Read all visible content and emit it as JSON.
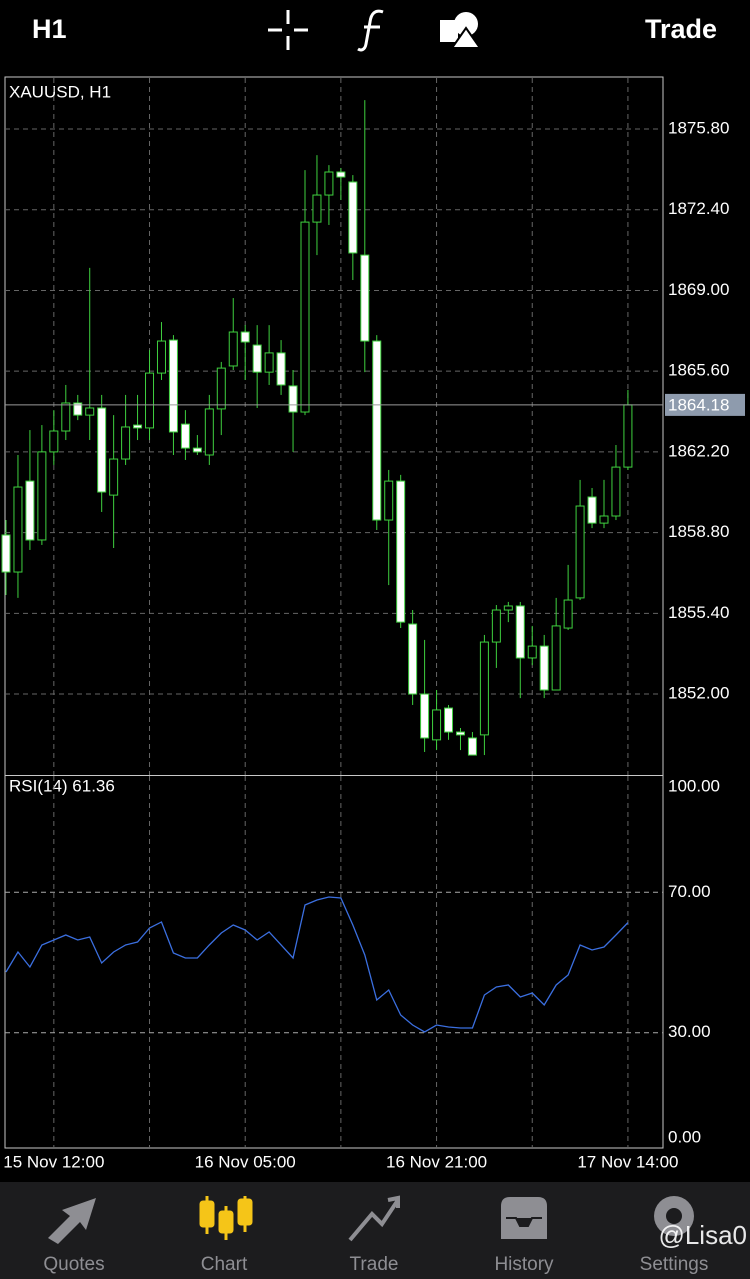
{
  "toolbar": {
    "timeframe": "H1",
    "action": "Trade"
  },
  "chart_data": [
    {
      "type": "candlestick",
      "title": "XAUUSD, H1",
      "grid": true,
      "up_color": "#3fd13f",
      "down_color": "#ffffff",
      "open": [
        1858.7,
        1857.14,
        1860.97,
        1858.49,
        1862.2,
        1863.08,
        1864.26,
        1863.75,
        1864.05,
        1860.38,
        1861.9,
        1863.33,
        1863.21,
        1865.52,
        1866.91,
        1863.37,
        1862.36,
        1862.07,
        1864.01,
        1865.82,
        1867.25,
        1866.7,
        1865.56,
        1866.37,
        1864.98,
        1863.88,
        1871.88,
        1873.02,
        1873.99,
        1873.57,
        1870.49,
        1866.87,
        1859.33,
        1860.97,
        1854.95,
        1852.0,
        1850.07,
        1851.41,
        1850.4,
        1850.15,
        1850.28,
        1854.19,
        1855.54,
        1855.71,
        1853.52,
        1854.02,
        1852.17,
        1854.78,
        1856.05,
        1860.3,
        1859.2,
        1859.5,
        1861.56
      ],
      "high": [
        1859.33,
        1862.07,
        1863.12,
        1863.33,
        1863.96,
        1865.02,
        1864.6,
        1869.95,
        1864.6,
        1863.75,
        1864.6,
        1864.6,
        1866.49,
        1867.67,
        1867.12,
        1863.96,
        1862.91,
        1864.6,
        1865.99,
        1868.68,
        1867.54,
        1867.54,
        1867.54,
        1866.91,
        1865.65,
        1874.07,
        1874.7,
        1874.28,
        1874.16,
        1873.86,
        1877.02,
        1867.12,
        1861.44,
        1861.23,
        1855.54,
        1854.28,
        1852.17,
        1851.54,
        1850.57,
        1850.4,
        1854.49,
        1855.75,
        1855.88,
        1855.88,
        1854.87,
        1854.49,
        1856.05,
        1857.44,
        1861.02,
        1860.68,
        1861.02,
        1862.49,
        1864.81
      ],
      "low": [
        1856.17,
        1856.05,
        1858.07,
        1858.28,
        1861.65,
        1862.7,
        1863.54,
        1862.7,
        1859.67,
        1858.15,
        1861.65,
        1862.7,
        1862.7,
        1865.23,
        1862.07,
        1861.86,
        1862.07,
        1861.65,
        1862.91,
        1865.65,
        1865.23,
        1864.05,
        1865.02,
        1864.6,
        1862.2,
        1863.75,
        1870.49,
        1871.76,
        1872.81,
        1869.44,
        1865.56,
        1858.91,
        1856.59,
        1854.78,
        1851.54,
        1849.56,
        1849.64,
        1850.07,
        1849.64,
        1849.43,
        1849.43,
        1853.1,
        1855.03,
        1851.83,
        1853.22,
        1851.83,
        1852.17,
        1854.7,
        1855.96,
        1858.99,
        1858.99,
        1859.33,
        1861.44
      ],
      "close": [
        1857.14,
        1860.72,
        1858.49,
        1862.2,
        1863.08,
        1864.26,
        1863.75,
        1864.05,
        1860.51,
        1861.9,
        1863.25,
        1863.21,
        1865.52,
        1866.87,
        1863.04,
        1862.36,
        1862.2,
        1864.01,
        1865.73,
        1867.25,
        1866.83,
        1865.56,
        1866.37,
        1865.02,
        1863.88,
        1871.88,
        1873.02,
        1873.99,
        1873.78,
        1870.58,
        1866.87,
        1859.33,
        1860.97,
        1855.03,
        1852.0,
        1850.15,
        1851.33,
        1850.4,
        1850.28,
        1849.43,
        1854.19,
        1855.54,
        1855.71,
        1853.52,
        1854.02,
        1852.17,
        1854.87,
        1855.96,
        1859.92,
        1859.2,
        1859.5,
        1861.56,
        1864.18
      ],
      "current_price": 1864.18,
      "ylim": [
        1848.59,
        1877.95
      ],
      "yticks": [
        {
          "value": 1875.8,
          "label": "1875.80"
        },
        {
          "value": 1872.4,
          "label": "1872.40"
        },
        {
          "value": 1869,
          "label": "1869.00"
        },
        {
          "value": 1865.6,
          "label": "1865.60"
        },
        {
          "value": 1862.2,
          "label": "1862.20"
        },
        {
          "value": 1858.8,
          "label": "1858.80"
        },
        {
          "value": 1855.4,
          "label": "1855.40"
        },
        {
          "value": 1852,
          "label": "1852.00"
        }
      ]
    },
    {
      "type": "line",
      "title": "RSI(14) 61.36",
      "color": "#3b6fe0",
      "grid": true,
      "categories": [
        null,
        null,
        null,
        null,
        "15 Nov 12:00",
        null,
        null,
        null,
        null,
        null,
        null,
        null,
        null,
        null,
        null,
        null,
        null,
        null,
        null,
        null,
        "16 Nov 05:00",
        null,
        null,
        null,
        null,
        null,
        null,
        null,
        null,
        null,
        null,
        null,
        null,
        null,
        null,
        null,
        "16 Nov 21:00",
        null,
        null,
        null,
        null,
        null,
        null,
        null,
        null,
        null,
        null,
        null,
        null,
        null,
        null,
        null,
        "17 Nov 14:00"
      ],
      "values": [
        47.29,
        52.99,
        48.72,
        54.99,
        56.41,
        57.83,
        56.41,
        57.26,
        49.86,
        52.99,
        54.99,
        55.84,
        59.83,
        61.54,
        52.71,
        51.28,
        51.28,
        54.99,
        58.4,
        60.68,
        59.26,
        56.41,
        58.69,
        54.99,
        51.28,
        66.38,
        67.81,
        68.66,
        68.38,
        60.68,
        52.14,
        39.32,
        42.17,
        35.04,
        32.19,
        30.2,
        32.19,
        31.62,
        31.34,
        31.34,
        40.74,
        43.02,
        43.59,
        40.17,
        41.31,
        37.89,
        43.59,
        46.44,
        54.99,
        53.56,
        54.42,
        57.83,
        61.36
      ],
      "ylim": [
        -2.85,
        103.13
      ],
      "yticks": [
        {
          "value": 100,
          "label": "100.00"
        },
        {
          "value": 70,
          "label": "70.00"
        },
        {
          "value": 30,
          "label": "30.00"
        },
        {
          "value": 0,
          "label": "0.00"
        }
      ]
    }
  ],
  "tabs": [
    "Quotes",
    "Chart",
    "Trade",
    "History",
    "Settings"
  ],
  "active_tab": 1,
  "watermark": "@Lisa0"
}
